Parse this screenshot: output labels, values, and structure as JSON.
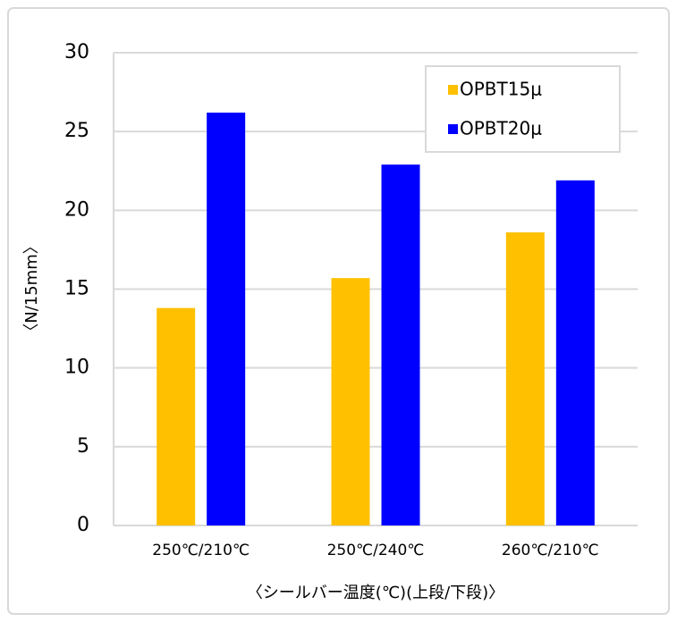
{
  "chart_data": {
    "type": "bar",
    "categories": [
      "250℃/210℃",
      "250℃/240℃",
      "260℃/210℃"
    ],
    "series": [
      {
        "name": "OPBT15μ",
        "color": "#ffc000",
        "values": [
          13.8,
          15.7,
          18.6
        ]
      },
      {
        "name": "OPBT20μ",
        "color": "#0000ff",
        "values": [
          26.2,
          22.9,
          21.9
        ]
      }
    ],
    "ylim": [
      0,
      30
    ],
    "yticks": [
      0,
      5,
      10,
      15,
      20,
      25,
      30
    ],
    "y_label": "〈N/15mm〉",
    "x_label": "〈シールバー温度(℃)(上段/下段)〉",
    "grid": true,
    "legend": "upper right"
  }
}
